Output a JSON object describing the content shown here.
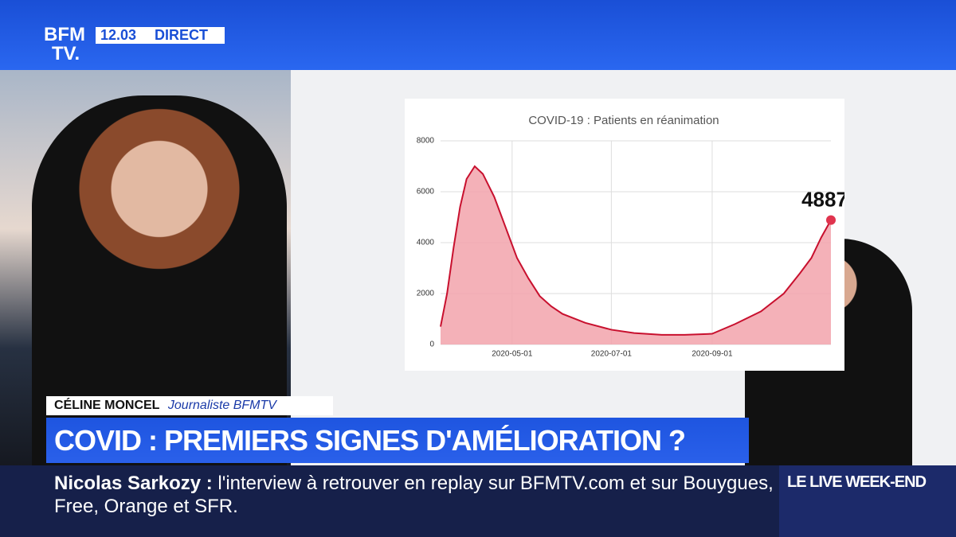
{
  "header": {
    "logo_top": "BFM",
    "logo_bottom": "TV.",
    "time": "12.03",
    "live": "DIRECT"
  },
  "guest": {
    "name": "CÉLINE MONCEL",
    "role": "Journaliste BFMTV"
  },
  "headline": "COVID : PREMIERS SIGNES D'AMÉLIORATION ?",
  "ticker": {
    "speaker": "Nicolas Sarkozy :",
    "text": "l'interview à retrouver en replay sur BFMTV.com et sur Bouygues, Free, Orange et SFR.",
    "program": "LE LIVE WEEK-END"
  },
  "chart_data": {
    "type": "area",
    "title": "COVID-19 : Patients en réanimation",
    "x": [
      "2020-03-18",
      "2020-03-22",
      "2020-03-26",
      "2020-03-30",
      "2020-04-03",
      "2020-04-08",
      "2020-04-13",
      "2020-04-20",
      "2020-04-27",
      "2020-05-04",
      "2020-05-11",
      "2020-05-18",
      "2020-05-25",
      "2020-06-01",
      "2020-06-15",
      "2020-07-01",
      "2020-07-15",
      "2020-08-01",
      "2020-08-15",
      "2020-09-01",
      "2020-09-15",
      "2020-10-01",
      "2020-10-15",
      "2020-10-25",
      "2020-11-01",
      "2020-11-07",
      "2020-11-13"
    ],
    "values": [
      700,
      2000,
      3800,
      5400,
      6500,
      7000,
      6700,
      5800,
      4600,
      3400,
      2600,
      1900,
      1500,
      1200,
      850,
      580,
      450,
      380,
      380,
      420,
      800,
      1300,
      2000,
      2800,
      3400,
      4200,
      4887
    ],
    "color": "#c8102e",
    "fill": "#f2a3ab",
    "xlim": [
      "2020-03-18",
      "2020-11-13"
    ],
    "xticks": [
      "2020-05-01",
      "2020-07-01",
      "2020-09-01"
    ],
    "ylim": [
      0,
      8000
    ],
    "yticks": [
      0,
      2000,
      4000,
      6000,
      8000
    ],
    "grid": true
  }
}
